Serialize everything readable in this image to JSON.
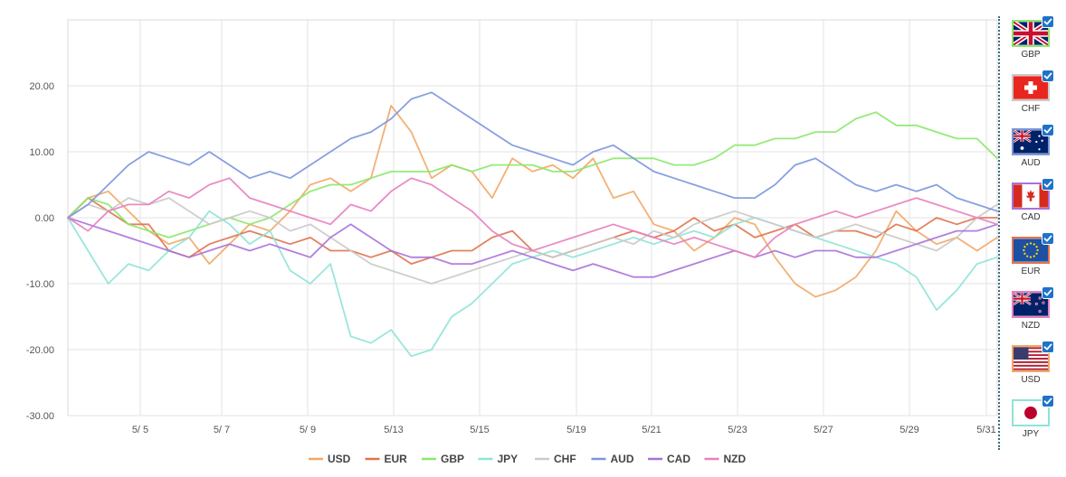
{
  "chart_data": {
    "type": "line",
    "x_labels": [
      "5/ 5",
      "5/ 7",
      "5/ 9",
      "5/13",
      "5/15",
      "5/19",
      "5/21",
      "5/23",
      "5/27",
      "5/29",
      "5/31"
    ],
    "ylim": [
      -30,
      30
    ],
    "y_ticks": [
      20,
      10,
      0,
      -10,
      -20,
      -30
    ],
    "y_tick_labels": [
      "20.00",
      "10.00",
      "0.00",
      "-10.00",
      "-20.00",
      "-30.00"
    ],
    "grid": true,
    "legend_position": "bottom",
    "series": [
      {
        "name": "USD",
        "color": "#f2a766",
        "values": [
          0,
          3,
          4,
          1,
          -2,
          -4,
          -3,
          -7,
          -4,
          -1,
          -2,
          1,
          5,
          6,
          4,
          6,
          17,
          13,
          6,
          8,
          7,
          3,
          9,
          7,
          8,
          6,
          9,
          3,
          4,
          -1,
          -2,
          -5,
          -3,
          0,
          -1,
          -6,
          -10,
          -12,
          -11,
          -9,
          -5,
          1,
          -2,
          -4,
          -3,
          -5,
          -3
        ]
      },
      {
        "name": "EUR",
        "color": "#e0734d",
        "values": [
          0,
          3,
          1,
          -1,
          -1,
          -5,
          -6,
          -4,
          -3,
          -2,
          -3,
          -4,
          -3,
          -5,
          -5,
          -6,
          -5,
          -7,
          -6,
          -5,
          -5,
          -3,
          -2,
          -5,
          -6,
          -5,
          -4,
          -3,
          -2,
          -3,
          -2,
          0,
          -2,
          -1,
          -3,
          -2,
          -1,
          -3,
          -2,
          -2,
          -3,
          -1,
          -2,
          0,
          -1,
          0,
          0
        ]
      },
      {
        "name": "GBP",
        "color": "#8ae86a",
        "values": [
          0,
          3,
          2,
          -1,
          -2,
          -3,
          -2,
          -1,
          0,
          -1,
          0,
          2,
          4,
          5,
          5,
          6,
          7,
          7,
          7,
          8,
          7,
          8,
          8,
          8,
          7,
          7,
          8,
          9,
          9,
          9,
          8,
          8,
          9,
          11,
          11,
          12,
          12,
          13,
          13,
          15,
          16,
          14,
          14,
          13,
          12,
          12,
          9
        ]
      },
      {
        "name": "JPY",
        "color": "#8ee3d8",
        "values": [
          0,
          -5,
          -10,
          -7,
          -8,
          -5,
          -3,
          1,
          -1,
          -4,
          -2,
          -8,
          -10,
          -7,
          -18,
          -19,
          -17,
          -21,
          -20,
          -15,
          -13,
          -10,
          -7,
          -6,
          -5,
          -6,
          -5,
          -4,
          -3,
          -4,
          -3,
          -2,
          -3,
          -1,
          0,
          -1,
          -2,
          -3,
          -4,
          -5,
          -6,
          -7,
          -9,
          -14,
          -11,
          -7,
          -6
        ]
      },
      {
        "name": "CHF",
        "color": "#c9c9c9",
        "values": [
          0,
          2,
          1,
          3,
          2,
          3,
          1,
          -1,
          0,
          1,
          0,
          -2,
          -1,
          -3,
          -5,
          -7,
          -8,
          -9,
          -10,
          -9,
          -8,
          -7,
          -6,
          -5,
          -6,
          -5,
          -4,
          -3,
          -4,
          -2,
          -3,
          -1,
          0,
          1,
          0,
          -1,
          -2,
          -3,
          -2,
          -1,
          -2,
          -3,
          -4,
          -5,
          -3,
          0,
          2
        ]
      },
      {
        "name": "AUD",
        "color": "#7b96db",
        "values": [
          0,
          2,
          5,
          8,
          10,
          9,
          8,
          10,
          8,
          6,
          7,
          6,
          8,
          10,
          12,
          13,
          15,
          18,
          19,
          17,
          15,
          13,
          11,
          10,
          9,
          8,
          10,
          11,
          9,
          7,
          6,
          5,
          4,
          3,
          3,
          5,
          8,
          9,
          7,
          5,
          4,
          5,
          4,
          5,
          3,
          2,
          1
        ]
      },
      {
        "name": "CAD",
        "color": "#a872d9",
        "values": [
          0,
          -1,
          -2,
          -3,
          -4,
          -5,
          -6,
          -5,
          -4,
          -5,
          -4,
          -5,
          -6,
          -3,
          -1,
          -3,
          -5,
          -6,
          -6,
          -7,
          -7,
          -6,
          -5,
          -6,
          -7,
          -8,
          -7,
          -8,
          -9,
          -9,
          -8,
          -7,
          -6,
          -5,
          -6,
          -5,
          -6,
          -5,
          -5,
          -6,
          -6,
          -5,
          -4,
          -3,
          -2,
          -2,
          -1
        ]
      },
      {
        "name": "NZD",
        "color": "#e87fbe",
        "values": [
          0,
          -2,
          1,
          2,
          2,
          4,
          3,
          5,
          6,
          3,
          2,
          1,
          0,
          -1,
          2,
          1,
          4,
          6,
          5,
          3,
          1,
          -2,
          -4,
          -5,
          -4,
          -3,
          -2,
          -1,
          -2,
          -3,
          -4,
          -3,
          -4,
          -5,
          -6,
          -3,
          -1,
          0,
          1,
          0,
          1,
          2,
          3,
          2,
          1,
          0,
          -1
        ]
      }
    ]
  },
  "legend": {
    "items": [
      {
        "label": "USD",
        "color": "#f2a766"
      },
      {
        "label": "EUR",
        "color": "#e0734d"
      },
      {
        "label": "GBP",
        "color": "#8ae86a"
      },
      {
        "label": "JPY",
        "color": "#8ee3d8"
      },
      {
        "label": "CHF",
        "color": "#c9c9c9"
      },
      {
        "label": "AUD",
        "color": "#7b96db"
      },
      {
        "label": "CAD",
        "color": "#a872d9"
      },
      {
        "label": "NZD",
        "color": "#e87fbe"
      }
    ]
  },
  "flags": [
    {
      "label": "GBP",
      "icon": "uk-flag-icon",
      "border_color": "#8ae86a",
      "checked": true
    },
    {
      "label": "CHF",
      "icon": "swiss-flag-icon",
      "border_color": "#c9c9c9",
      "checked": true
    },
    {
      "label": "AUD",
      "icon": "australia-flag-icon",
      "border_color": "#7b96db",
      "checked": true
    },
    {
      "label": "CAD",
      "icon": "canada-flag-icon",
      "border_color": "#a872d9",
      "checked": true
    },
    {
      "label": "EUR",
      "icon": "eu-flag-icon",
      "border_color": "#e0734d",
      "checked": true
    },
    {
      "label": "NZD",
      "icon": "new-zealand-flag-icon",
      "border_color": "#e87fbe",
      "checked": true
    },
    {
      "label": "USD",
      "icon": "usa-flag-icon",
      "border_color": "#f2a766",
      "checked": true
    },
    {
      "label": "JPY",
      "icon": "japan-flag-icon",
      "border_color": "#8ee3d8",
      "checked": true
    }
  ]
}
